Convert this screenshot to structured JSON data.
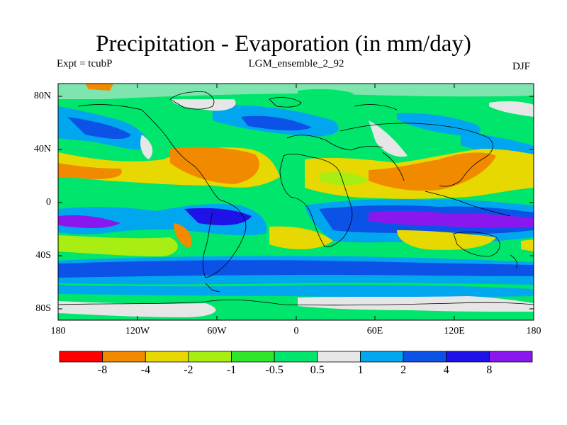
{
  "title": "Precipitation - Evaporation (in mm/day)",
  "experiment": "Expt = tcubP",
  "ensemble": "LGM_ensemble_2_92",
  "season": "DJF",
  "map": {
    "lat_labels": [
      "80N",
      "40N",
      "0",
      "40S",
      "80S"
    ],
    "lon_labels": [
      "180",
      "120W",
      "60W",
      "0",
      "60E",
      "120E",
      "180"
    ],
    "background_color": "#00e56b"
  },
  "colorbar": {
    "labels": [
      "-8",
      "-4",
      "-2",
      "-1",
      "-0.5",
      "0.5",
      "1",
      "2",
      "4",
      "8"
    ],
    "colors": [
      "#ff0000",
      "#f28a00",
      "#e6d800",
      "#a8ee12",
      "#2fe62a",
      "#00e56b",
      "#e6e6e6",
      "#00a7ee",
      "#0c52e6",
      "#1f12e8",
      "#8a18ee"
    ]
  }
}
